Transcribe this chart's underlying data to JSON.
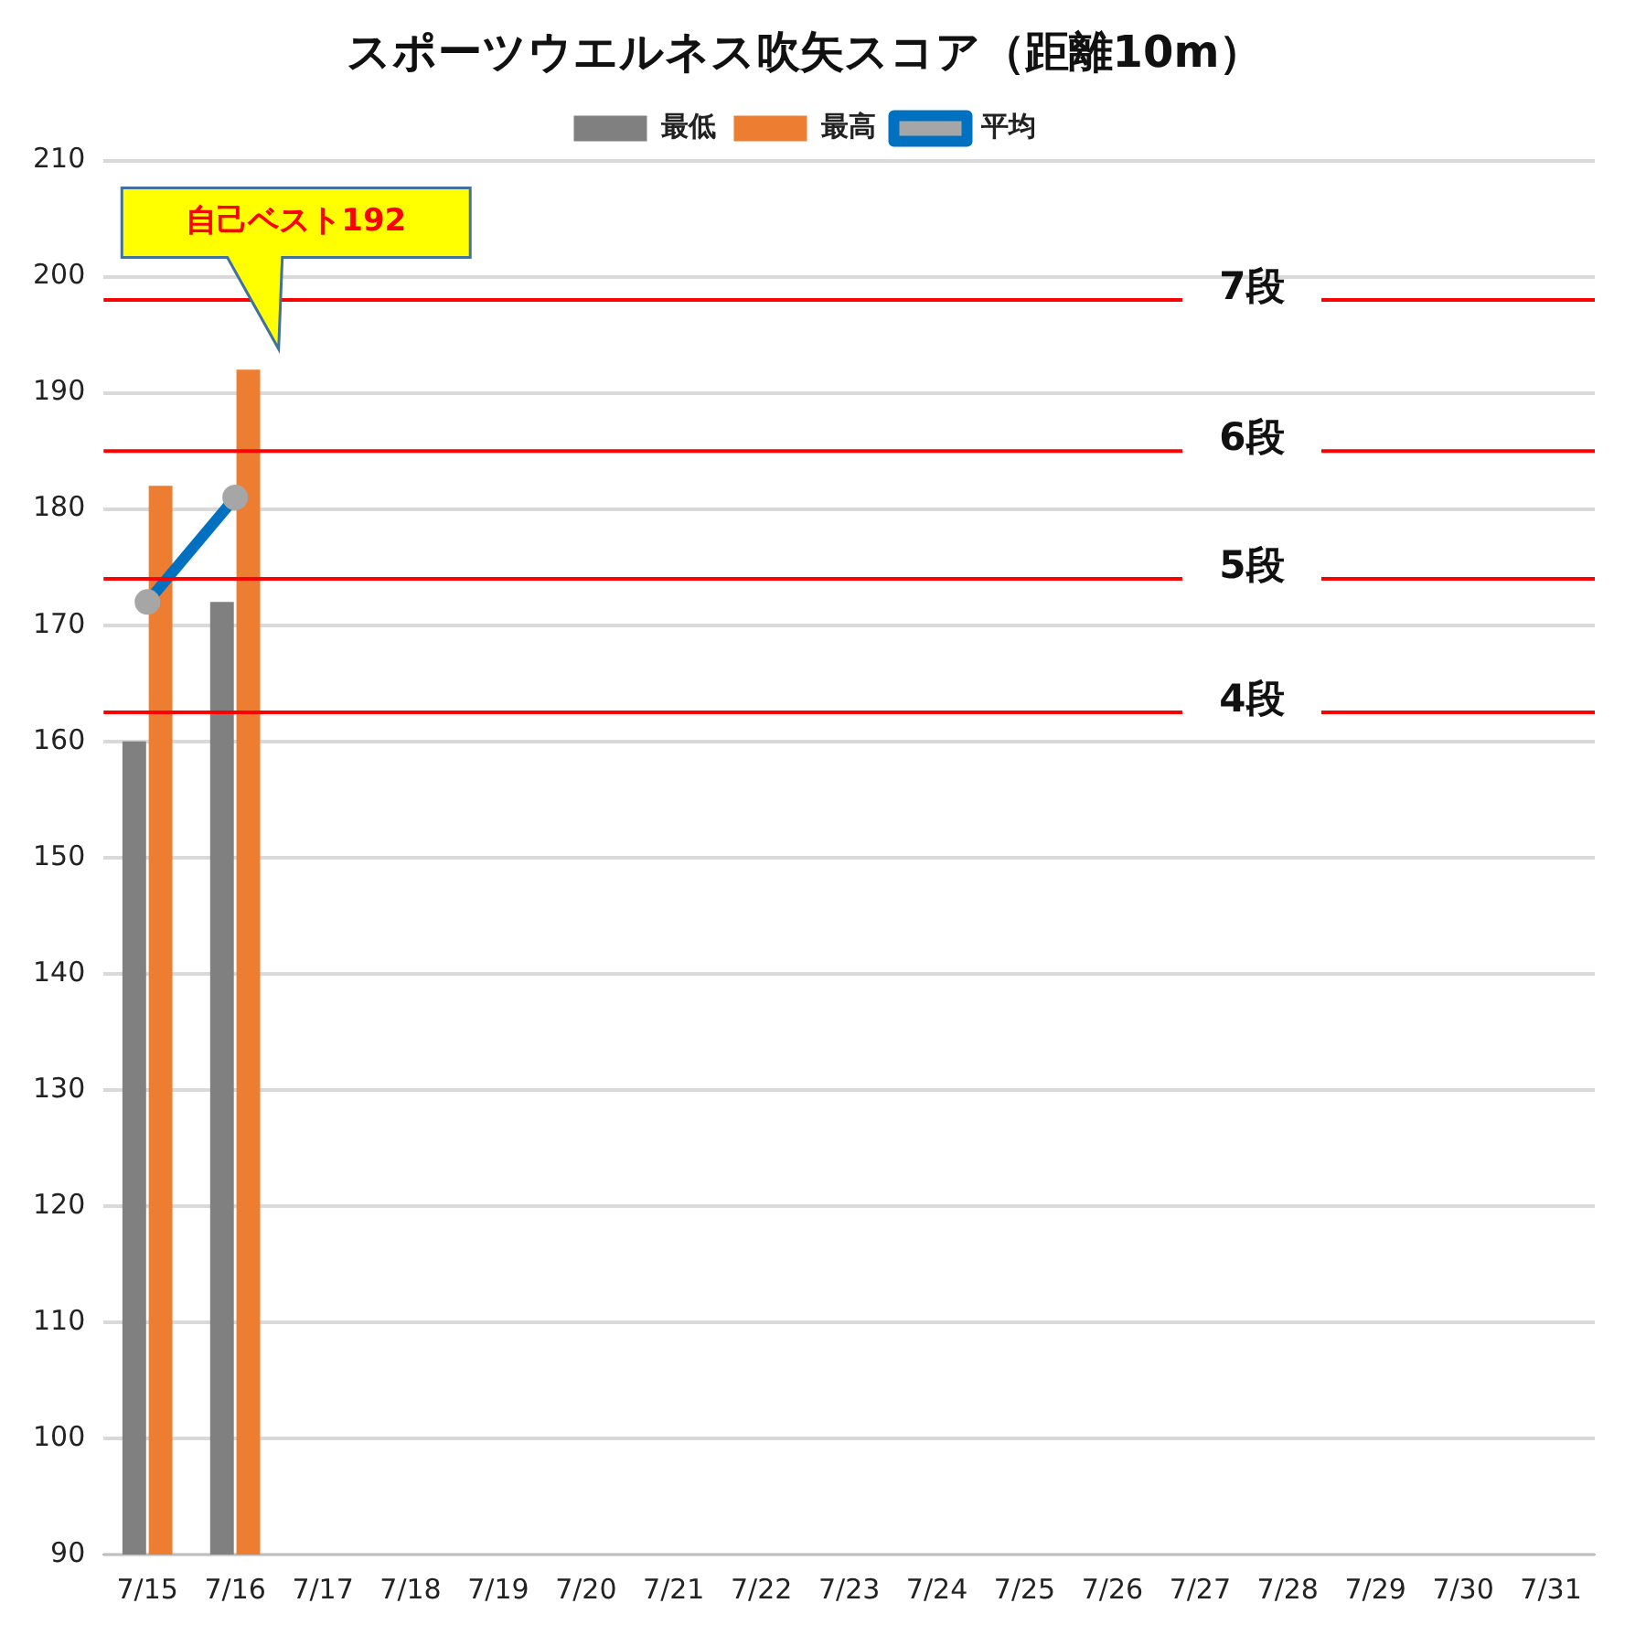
{
  "chart_data": {
    "type": "bar",
    "title": "スポーツウエルネス吹矢スコア（距離10m）",
    "categories": [
      "7/15",
      "7/16",
      "7/17",
      "7/18",
      "7/19",
      "7/20",
      "7/21",
      "7/22",
      "7/23",
      "7/24",
      "7/25",
      "7/26",
      "7/27",
      "7/28",
      "7/29",
      "7/30",
      "7/31"
    ],
    "series": [
      {
        "name": "最低",
        "color": "#808080",
        "values": [
          160,
          172,
          null,
          null,
          null,
          null,
          null,
          null,
          null,
          null,
          null,
          null,
          null,
          null,
          null,
          null,
          null
        ]
      },
      {
        "name": "最高",
        "color": "#ed7d31",
        "values": [
          182,
          192,
          null,
          null,
          null,
          null,
          null,
          null,
          null,
          null,
          null,
          null,
          null,
          null,
          null,
          null,
          null
        ]
      },
      {
        "name": "平均",
        "type": "line",
        "color": "#0070c0",
        "marker": "circle",
        "values": [
          172,
          181,
          null,
          null,
          null,
          null,
          null,
          null,
          null,
          null,
          null,
          null,
          null,
          null,
          null,
          null,
          null
        ]
      }
    ],
    "ylim": [
      90,
      210
    ],
    "yticks": [
      90,
      100,
      110,
      120,
      130,
      140,
      150,
      160,
      170,
      180,
      190,
      200,
      210
    ],
    "grid": "y",
    "legend": "top",
    "ref_lines": [
      {
        "axis": "y",
        "value": 198,
        "label": "7段",
        "color": "#ff0000"
      },
      {
        "axis": "y",
        "value": 185,
        "label": "6段",
        "color": "#ff0000"
      },
      {
        "axis": "y",
        "value": 174,
        "label": "5段",
        "color": "#ff0000"
      },
      {
        "axis": "y",
        "value": 162.5,
        "label": "4段",
        "color": "#ff0000"
      }
    ],
    "annotations": [
      "自己ベスト192"
    ]
  }
}
